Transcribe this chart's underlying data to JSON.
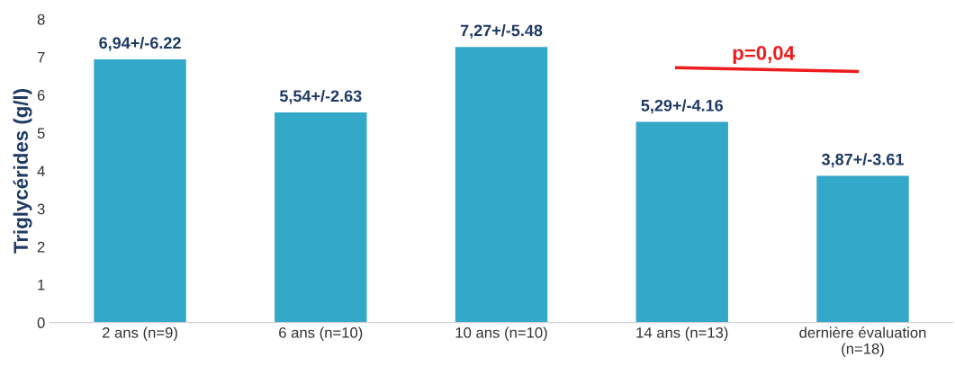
{
  "chart_data": {
    "type": "bar",
    "ylabel": "Triglycérides (g/l)",
    "categories": [
      "2 ans (n=9)",
      "6 ans (n=10)",
      "10 ans (n=10)",
      "14 ans (n=13)",
      "dernière évaluation\n(n=18)"
    ],
    "values": [
      6.94,
      5.54,
      7.27,
      5.29,
      3.87
    ],
    "value_labels": [
      "6,94+/-6.22",
      "5,54+/-2.63",
      "7,27+/-5.48",
      "5,29+/-4.16",
      "3,87+/-3.61"
    ],
    "color": "#33a8c8",
    "ylim": [
      0,
      8
    ],
    "yticks": [
      0,
      1,
      2,
      3,
      4,
      5,
      6,
      7,
      8
    ],
    "grid": false,
    "legend": false,
    "annotations": [
      "p=0,04"
    ]
  }
}
